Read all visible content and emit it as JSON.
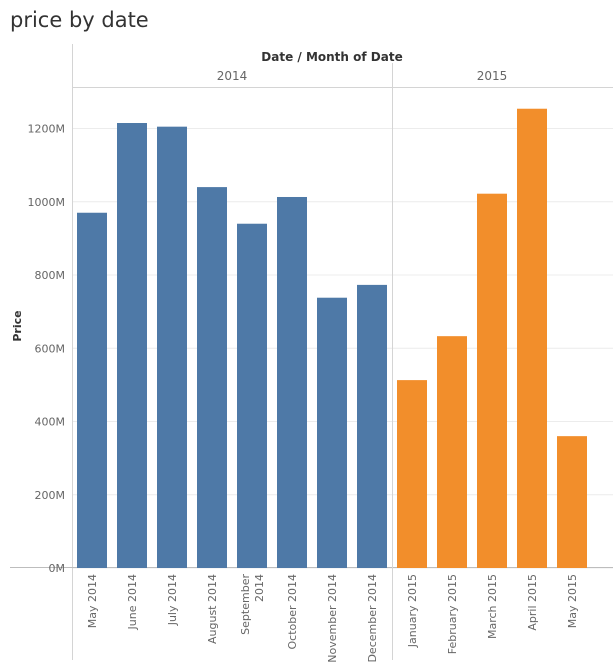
{
  "title": "price by date",
  "chart_data": {
    "type": "bar",
    "title": "price by date",
    "column_header": "Date / Month of Date",
    "ylabel": "Price",
    "ylim": [
      0,
      1300000000
    ],
    "y_ticks": [
      0,
      200000000,
      400000000,
      600000000,
      800000000,
      1000000000,
      1200000000
    ],
    "y_tick_labels": [
      "0M",
      "200M",
      "400M",
      "600M",
      "800M",
      "1000M",
      "1200M"
    ],
    "groups": [
      {
        "name": "2014",
        "color": "#4e79a7",
        "categories": [
          "May 2014",
          "June 2014",
          "July 2014",
          "August 2014",
          "September 2014",
          "October 2014",
          "November 2014",
          "December 2014"
        ],
        "values": [
          970000000,
          1215000000,
          1205000000,
          1040000000,
          940000000,
          1013000000,
          738000000,
          773000000
        ]
      },
      {
        "name": "2015",
        "color": "#f28e2b",
        "categories": [
          "January 2015",
          "February 2015",
          "March 2015",
          "April 2015",
          "May 2015"
        ],
        "values": [
          513000000,
          633000000,
          1022000000,
          1254000000,
          360000000
        ]
      }
    ],
    "grid": true,
    "legend": "none"
  }
}
